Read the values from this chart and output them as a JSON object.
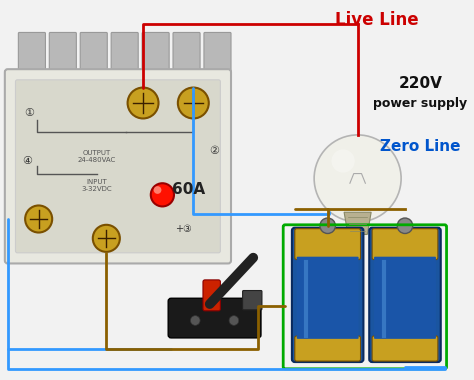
{
  "background_color": "#f2f2f2",
  "labels": {
    "live_line": "Live Line",
    "power_supply": "220V\npower supply",
    "zero_line": "Zero Line"
  },
  "label_colors": {
    "live_line": "#cc0000",
    "power_supply": "#111111",
    "zero_line": "#0055cc"
  },
  "label_positions": {
    "live_line": [
      0.72,
      0.95
    ],
    "power_supply": [
      0.88,
      0.8
    ],
    "zero_line": [
      0.84,
      0.67
    ]
  },
  "wire_colors": {
    "live": "#cc0000",
    "zero": "#3399ff",
    "dc": "#8B6000"
  },
  "relay": {
    "body_color": "#e8e8e0",
    "inner_color": "#d8d8cc",
    "heatsink_color": "#b8b8b8",
    "terminal_color": "#c8a020",
    "led_color": "#ff1100",
    "label_60A": "60A",
    "label_input": "INPUT\n3-32VDC",
    "label_output": "OUTPUT\n24-480VAC"
  },
  "battery": {
    "body_color": "#1a55a0",
    "gold_color": "#c8a020",
    "highlight": "#4488cc",
    "outline_color": "#00aa00"
  },
  "switch": {
    "base_color": "#1a1a1a",
    "lever_color": "#222222",
    "knob_color": "#cc2200"
  }
}
